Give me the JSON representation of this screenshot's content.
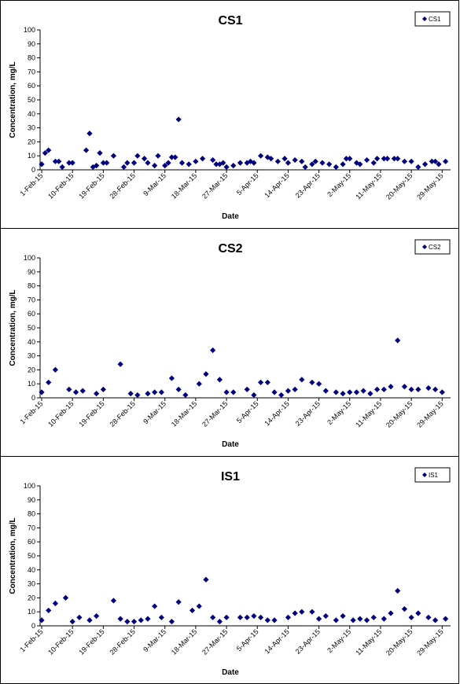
{
  "chart_data": [
    {
      "type": "scatter",
      "title": "CS1",
      "xlabel": "Date",
      "ylabel": "Concentration, mg/L",
      "ylim": [
        0,
        100
      ],
      "yticks": [
        "0",
        "10",
        "20",
        "30",
        "40",
        "50",
        "60",
        "70",
        "80",
        "90",
        "100"
      ],
      "xlim": [
        "2015-02-01",
        "2015-05-31"
      ],
      "xticks": [
        "1-Feb-15",
        "10-Feb-15",
        "19-Feb-15",
        "28-Feb-15",
        "9-Mar-15",
        "18-Mar-15",
        "27-Mar-15",
        "5-Apr-15",
        "14-Apr-15",
        "23-Apr-15",
        "2-May-15",
        "11-May-15",
        "20-May-15",
        "29-May-15"
      ],
      "legend": "top-right",
      "grid": false,
      "marker_color": "#000080",
      "series": [
        {
          "name": "CS1",
          "x": [
            "2015-02-01",
            "2015-02-02",
            "2015-02-03",
            "2015-02-05",
            "2015-02-06",
            "2015-02-07",
            "2015-02-09",
            "2015-02-10",
            "2015-02-14",
            "2015-02-15",
            "2015-02-16",
            "2015-02-17",
            "2015-02-18",
            "2015-02-19",
            "2015-02-20",
            "2015-02-22",
            "2015-02-25",
            "2015-02-26",
            "2015-02-28",
            "2015-03-01",
            "2015-03-03",
            "2015-03-04",
            "2015-03-06",
            "2015-03-07",
            "2015-03-09",
            "2015-03-10",
            "2015-03-11",
            "2015-03-12",
            "2015-03-13",
            "2015-03-14",
            "2015-03-16",
            "2015-03-18",
            "2015-03-20",
            "2015-03-23",
            "2015-03-24",
            "2015-03-25",
            "2015-03-26",
            "2015-03-27",
            "2015-03-29",
            "2015-03-31",
            "2015-04-02",
            "2015-04-03",
            "2015-04-04",
            "2015-04-06",
            "2015-04-08",
            "2015-04-09",
            "2015-04-11",
            "2015-04-13",
            "2015-04-14",
            "2015-04-16",
            "2015-04-18",
            "2015-04-19",
            "2015-04-21",
            "2015-04-22",
            "2015-04-24",
            "2015-04-26",
            "2015-04-28",
            "2015-04-30",
            "2015-05-01",
            "2015-05-02",
            "2015-05-04",
            "2015-05-05",
            "2015-05-07",
            "2015-05-09",
            "2015-05-10",
            "2015-05-12",
            "2015-05-13",
            "2015-05-15",
            "2015-05-16",
            "2015-05-18",
            "2015-05-20",
            "2015-05-22",
            "2015-05-24",
            "2015-05-26",
            "2015-05-27",
            "2015-05-28",
            "2015-05-30"
          ],
          "y": [
            4,
            12,
            14,
            6,
            6,
            2,
            5,
            5,
            14,
            26,
            2,
            3,
            12,
            5,
            5,
            10,
            2,
            5,
            5,
            10,
            8,
            5,
            3,
            10,
            3,
            5,
            9,
            9,
            36,
            5,
            4,
            6,
            8,
            7,
            4,
            4,
            5,
            2,
            3,
            5,
            5,
            6,
            5,
            10,
            9,
            8,
            6,
            8,
            5,
            7,
            6,
            2,
            4,
            6,
            5,
            4,
            2,
            4,
            8,
            8,
            5,
            4,
            7,
            5,
            8,
            8,
            8,
            8,
            8,
            6,
            6,
            2,
            4,
            6,
            6,
            4,
            6
          ],
          "note": ""
        }
      ]
    },
    {
      "type": "scatter",
      "title": "CS2",
      "xlabel": "Date",
      "ylabel": "Concentration, mg/L",
      "ylim": [
        0,
        100
      ],
      "yticks": [
        "0",
        "10",
        "20",
        "30",
        "40",
        "50",
        "60",
        "70",
        "80",
        "90",
        "100"
      ],
      "xlim": [
        "2015-02-01",
        "2015-05-31"
      ],
      "xticks": [
        "1-Feb-15",
        "10-Feb-15",
        "19-Feb-15",
        "28-Feb-15",
        "9-Mar-15",
        "18-Mar-15",
        "27-Mar-15",
        "5-Apr-15",
        "14-Apr-15",
        "23-Apr-15",
        "2-May-15",
        "11-May-15",
        "20-May-15",
        "29-May-15"
      ],
      "legend": "top-right",
      "grid": false,
      "marker_color": "#000080",
      "series": [
        {
          "name": "CS2",
          "x": [
            "2015-02-01",
            "2015-02-03",
            "2015-02-05",
            "2015-02-09",
            "2015-02-11",
            "2015-02-13",
            "2015-02-17",
            "2015-02-19",
            "2015-02-24",
            "2015-02-27",
            "2015-03-01",
            "2015-03-04",
            "2015-03-06",
            "2015-03-08",
            "2015-03-11",
            "2015-03-13",
            "2015-03-15",
            "2015-03-19",
            "2015-03-21",
            "2015-03-23",
            "2015-03-25",
            "2015-03-27",
            "2015-03-29",
            "2015-04-02",
            "2015-04-04",
            "2015-04-06",
            "2015-04-08",
            "2015-04-10",
            "2015-04-12",
            "2015-04-14",
            "2015-04-16",
            "2015-04-18",
            "2015-04-21",
            "2015-04-23",
            "2015-04-25",
            "2015-04-28",
            "2015-04-30",
            "2015-05-02",
            "2015-05-04",
            "2015-05-06",
            "2015-05-08",
            "2015-05-10",
            "2015-05-12",
            "2015-05-14",
            "2015-05-16",
            "2015-05-18",
            "2015-05-20",
            "2015-05-22",
            "2015-05-25",
            "2015-05-27",
            "2015-05-29"
          ],
          "y": [
            4,
            11,
            20,
            6,
            4,
            5,
            3,
            6,
            24,
            3,
            2,
            3,
            4,
            4,
            14,
            6,
            2,
            10,
            17,
            34,
            13,
            4,
            4,
            6,
            2,
            11,
            11,
            4,
            2,
            5,
            6,
            13,
            11,
            10,
            5,
            4,
            3,
            4,
            4,
            5,
            3,
            6,
            6,
            8,
            41,
            8,
            6,
            6,
            7,
            6,
            4
          ]
        }
      ]
    },
    {
      "type": "scatter",
      "title": "IS1",
      "xlabel": "Date",
      "ylabel": "Concentration, mg/L",
      "ylim": [
        0,
        100
      ],
      "yticks": [
        "0",
        "10",
        "20",
        "30",
        "40",
        "50",
        "60",
        "70",
        "80",
        "90",
        "100"
      ],
      "xlim": [
        "2015-02-01",
        "2015-05-31"
      ],
      "xticks": [
        "1-Feb-15",
        "10-Feb-15",
        "19-Feb-15",
        "28-Feb-15",
        "9-Mar-15",
        "18-Mar-15",
        "27-Mar-15",
        "5-Apr-15",
        "14-Apr-15",
        "23-Apr-15",
        "2-May-15",
        "11-May-15",
        "20-May-15",
        "29-May-15"
      ],
      "legend": "top-right",
      "grid": false,
      "marker_color": "#000080",
      "series": [
        {
          "name": "IS1",
          "x": [
            "2015-02-01",
            "2015-02-03",
            "2015-02-05",
            "2015-02-08",
            "2015-02-10",
            "2015-02-12",
            "2015-02-15",
            "2015-02-17",
            "2015-02-22",
            "2015-02-24",
            "2015-02-26",
            "2015-02-28",
            "2015-03-02",
            "2015-03-04",
            "2015-03-06",
            "2015-03-08",
            "2015-03-11",
            "2015-03-13",
            "2015-03-17",
            "2015-03-19",
            "2015-03-21",
            "2015-03-23",
            "2015-03-25",
            "2015-03-27",
            "2015-03-31",
            "2015-04-02",
            "2015-04-04",
            "2015-04-06",
            "2015-04-08",
            "2015-04-10",
            "2015-04-14",
            "2015-04-16",
            "2015-04-18",
            "2015-04-21",
            "2015-04-23",
            "2015-04-25",
            "2015-04-28",
            "2015-04-30",
            "2015-05-03",
            "2015-05-05",
            "2015-05-07",
            "2015-05-09",
            "2015-05-12",
            "2015-05-14",
            "2015-05-16",
            "2015-05-18",
            "2015-05-20",
            "2015-05-22",
            "2015-05-25",
            "2015-05-27",
            "2015-05-30"
          ],
          "y": [
            4,
            11,
            16,
            20,
            3,
            6,
            4,
            7,
            18,
            5,
            3,
            3,
            4,
            5,
            14,
            6,
            3,
            17,
            11,
            14,
            33,
            6,
            3,
            6,
            6,
            6,
            7,
            6,
            4,
            4,
            6,
            9,
            10,
            10,
            5,
            7,
            4,
            7,
            4,
            5,
            4,
            6,
            5,
            9,
            25,
            12,
            6,
            9,
            6,
            4,
            5
          ]
        }
      ]
    }
  ]
}
